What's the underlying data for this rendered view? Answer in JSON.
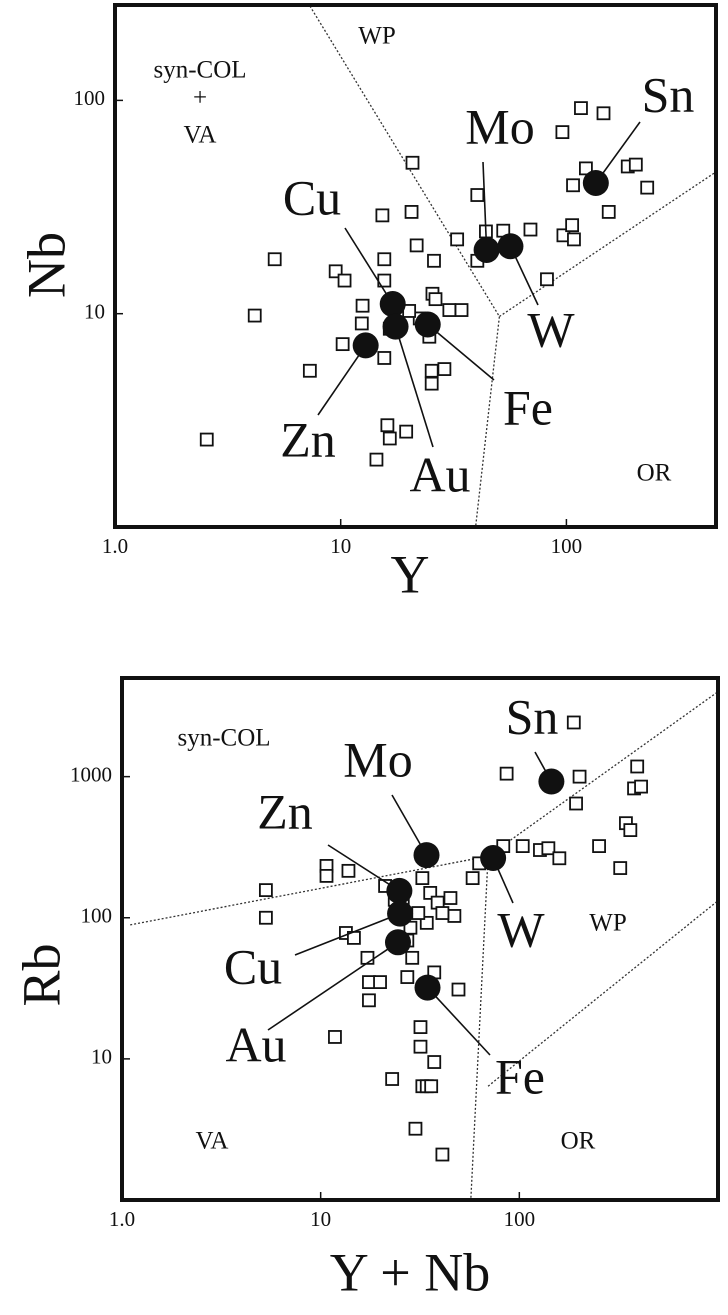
{
  "chart_data": [
    {
      "type": "scatter",
      "log_x": true,
      "log_y": true,
      "x_label": "Y",
      "y_label": "Nb",
      "xlim": [
        1,
        460
      ],
      "ylim": [
        1,
        280
      ],
      "xticks": [
        {
          "value": 1,
          "label": "1.0"
        },
        10,
        100
      ],
      "yticks": [
        10,
        100
      ],
      "annotations": [
        "syn-COL",
        "+",
        "VA",
        "WP",
        "OR"
      ],
      "boundaries": [
        {
          "x": [
            7.3,
            50.5,
            39.6
          ],
          "y": [
            277,
            9.7,
            1
          ]
        },
        {
          "x": [
            50.5,
            457
          ],
          "y": [
            9.7,
            46
          ]
        }
      ],
      "series": [
        {
          "marker": "square",
          "color": "#111111",
          "x": [
            2.55,
            4.16,
            5.1,
            7.3,
            9.5,
            10.4,
            10.2,
            12.4,
            12.5,
            15.3,
            15.6,
            15.6,
            16.1,
            16.5,
            14.4,
            19.5,
            20.8,
            20.6,
            21.7,
            25.9,
            25.5,
            26.3,
            24.7,
            25.3,
            25.3,
            28.8,
            22.4,
            20.1,
            30.3,
            34.3,
            32.8,
            16.5,
            15.6,
            40.3,
            40.3,
            44,
            52.5,
            69.3,
            82,
            97,
            106,
            96,
            116,
            146,
            107,
            122,
            154,
            187,
            203,
            228,
            108
          ],
          "values": [
            2.57,
            9.8,
            18,
            5.4,
            15.8,
            14.3,
            7.2,
            9.0,
            10.9,
            28.9,
            18,
            14.3,
            3.0,
            2.6,
            2.07,
            2.8,
            51,
            30,
            20.9,
            17.7,
            12.4,
            11.7,
            7.8,
            5.4,
            4.7,
            5.5,
            9.5,
            10.3,
            10.4,
            10.4,
            22.3,
            8.5,
            6.2,
            17.7,
            36,
            24.3,
            24.5,
            24.8,
            14.5,
            23.3,
            26,
            71,
            92,
            87,
            40,
            48,
            30,
            49,
            50,
            39,
            22.3
          ]
        },
        {
          "marker": "circle",
          "color": "#111111",
          "labels": [
            "Sn",
            "Mo",
            "W",
            "Cu",
            "Fe",
            "Au",
            "Zn"
          ],
          "x": [
            135,
            44.3,
            56.5,
            17,
            24.3,
            17.5,
            12.9
          ],
          "values": [
            41,
            19.9,
            20.7,
            11.1,
            8.9,
            8.7,
            7.1
          ]
        }
      ]
    },
    {
      "type": "scatter",
      "log_x": true,
      "log_y": true,
      "x_label": "Y + Nb",
      "y_label": "Rb",
      "xlim": [
        1,
        1000
      ],
      "ylim": [
        1,
        5000
      ],
      "xticks": [
        {
          "value": 1,
          "label": "1.0"
        },
        10,
        100
      ],
      "yticks": [
        10,
        100,
        1000
      ],
      "annotations": [
        "syn-COL",
        "WP",
        "VA",
        "OR"
      ],
      "boundaries": [
        {
          "x": [
            1.1,
            69.6,
            1000
          ],
          "y": [
            89,
            273,
            4000
          ]
        },
        {
          "x": [
            69.6,
            57
          ],
          "y": [
            273,
            1
          ]
        },
        {
          "x": [
            69.6,
            1000
          ],
          "y": [
            6.4,
            132
          ]
        }
      ],
      "series": [
        {
          "marker": "square",
          "color": "#111111",
          "x": [
            5.3,
            5.3,
            10.7,
            10.7,
            13.8,
            13.4,
            14.7,
            11.8,
            17.2,
            17.5,
            17.5,
            19.9,
            21.1,
            22.9,
            23.6,
            24.9,
            27.3,
            28.9,
            30,
            31.8,
            31.8,
            32.5,
            34.2,
            36,
            37.3,
            41,
            37.3,
            35.6,
            32.5,
            38.8,
            45,
            47.1,
            41,
            34.2,
            31,
            28.3,
            27.3,
            25.9,
            49.4,
            58.2,
            62.8,
            83,
            86.3,
            104,
            127,
            140,
            159,
            188,
            201,
            193,
            252,
            322,
            344,
            362,
            378,
            410,
            392
          ],
          "values": [
            157,
            100,
            233,
            198,
            215,
            78,
            72,
            14.3,
            52,
            35,
            26,
            35,
            168,
            7.2,
            134,
            72,
            38,
            52,
            3.2,
            16.8,
            12.2,
            6.4,
            6.4,
            6.4,
            9.5,
            2.1,
            41,
            150,
            191,
            128,
            138,
            103,
            108,
            92,
            108,
            85,
            69,
            128,
            31,
            191,
            243,
            322,
            1050,
            322,
            302,
            311,
            264,
            2420,
            1000,
            645,
            322,
            225,
            468,
            418,
            825,
            850,
            1180
          ]
        },
        {
          "marker": "circle",
          "color": "#111111",
          "labels": [
            "Sn",
            "Mo",
            "W",
            "Zn",
            "Cu",
            "Au",
            "Fe"
          ],
          "x": [
            145,
            34.1,
            73.8,
            24.9,
            25.1,
            24.5,
            34.5
          ],
          "values": [
            923,
            278,
            265,
            155,
            107,
            67,
            32
          ]
        }
      ]
    }
  ]
}
